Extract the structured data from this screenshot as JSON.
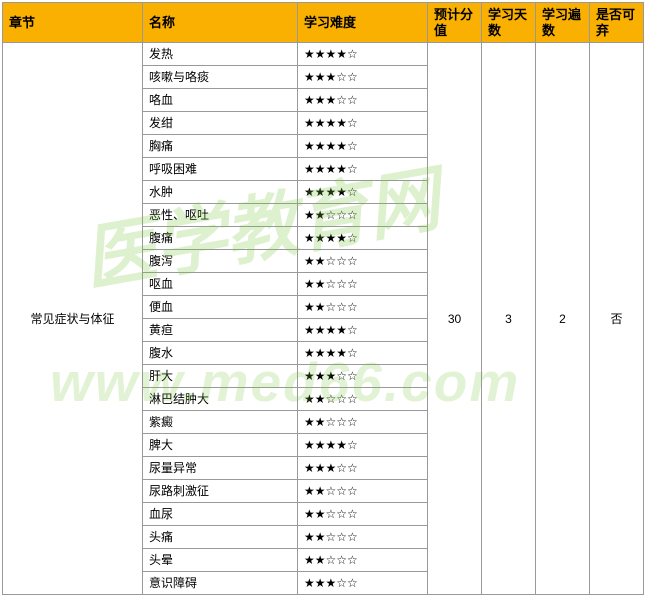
{
  "headers": {
    "chapter": "章节",
    "name": "名称",
    "difficulty": "学习难度",
    "score": "预计分值",
    "days": "学习天数",
    "times": "学习遍数",
    "drop": "是否可弃"
  },
  "chapter": "常见症状与体征",
  "score": "30",
  "days": "3",
  "times": "2",
  "drop": "否",
  "rows": [
    {
      "name": "发热",
      "stars": "★★★★☆"
    },
    {
      "name": "咳嗽与咯痰",
      "stars": "★★★☆☆"
    },
    {
      "name": "咯血",
      "stars": "★★★☆☆"
    },
    {
      "name": "发绀",
      "stars": "★★★★☆"
    },
    {
      "name": "胸痛",
      "stars": "★★★★☆"
    },
    {
      "name": "呼吸困难",
      "stars": "★★★★☆"
    },
    {
      "name": "水肿",
      "stars": "★★★★☆"
    },
    {
      "name": "恶性、呕吐",
      "stars": "★★☆☆☆"
    },
    {
      "name": "腹痛",
      "stars": "★★★★☆"
    },
    {
      "name": "腹泻",
      "stars": "★★☆☆☆"
    },
    {
      "name": "呕血",
      "stars": "★★☆☆☆"
    },
    {
      "name": "便血",
      "stars": "★★☆☆☆"
    },
    {
      "name": "黄疸",
      "stars": "★★★★☆"
    },
    {
      "name": "腹水",
      "stars": "★★★★☆"
    },
    {
      "name": "肝大",
      "stars": "★★★☆☆"
    },
    {
      "name": "淋巴结肿大",
      "stars": "★★☆☆☆"
    },
    {
      "name": "紫癜",
      "stars": "★★☆☆☆"
    },
    {
      "name": "脾大",
      "stars": "★★★★☆"
    },
    {
      "name": "尿量异常",
      "stars": "★★★☆☆"
    },
    {
      "name": "尿路刺激征",
      "stars": "★★☆☆☆"
    },
    {
      "name": "血尿",
      "stars": "★★☆☆☆"
    },
    {
      "name": "头痛",
      "stars": "★★☆☆☆"
    },
    {
      "name": "头晕",
      "stars": "★★☆☆☆"
    },
    {
      "name": "意识障碍",
      "stars": "★★★☆☆"
    }
  ],
  "watermark": {
    "text1": "医学教育网",
    "text2": "www.med66.com"
  },
  "styling": {
    "header_bg": "#f9b000",
    "border_color": "#999999",
    "font_size_body": 12,
    "font_size_header": 13,
    "star_filled": "★",
    "star_empty": "☆",
    "watermark_color": "rgba(120,200,60,0.25)"
  }
}
